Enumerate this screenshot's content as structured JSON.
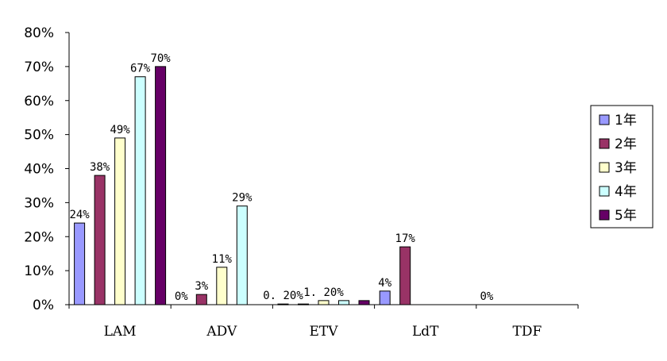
{
  "chart_data": {
    "type": "bar",
    "title": "",
    "xlabel": "",
    "ylabel": "",
    "ylim": [
      0,
      80
    ],
    "y_ticks": [
      "0%",
      "10%",
      "20%",
      "30%",
      "40%",
      "50%",
      "60%",
      "70%",
      "80%"
    ],
    "categories": [
      "LAM",
      "ADV",
      "ETV",
      "LdT",
      "TDF"
    ],
    "series": [
      {
        "name": "1年",
        "color": "#9999ff",
        "values": [
          24,
          0,
          0.2,
          4,
          0
        ]
      },
      {
        "name": "2年",
        "color": "#993366",
        "values": [
          38,
          3,
          0.2,
          17,
          0
        ]
      },
      {
        "name": "3年",
        "color": "#ffffcc",
        "values": [
          49,
          11,
          1.2,
          0,
          0
        ]
      },
      {
        "name": "4年",
        "color": "#ccffff",
        "values": [
          67,
          29,
          1.2,
          0,
          0
        ]
      },
      {
        "name": "5年",
        "color": "#660066",
        "values": [
          70,
          0,
          1.2,
          0,
          0
        ]
      }
    ],
    "data_labels": [
      {
        "category": 0,
        "series": 0,
        "text": "24%"
      },
      {
        "category": 0,
        "series": 1,
        "text": "38%"
      },
      {
        "category": 0,
        "series": 2,
        "text": "49%"
      },
      {
        "category": 0,
        "series": 3,
        "text": "67%"
      },
      {
        "category": 0,
        "series": 4,
        "text": "70%"
      },
      {
        "category": 1,
        "series": 0,
        "text": "0%"
      },
      {
        "category": 1,
        "series": 1,
        "text": "3%"
      },
      {
        "category": 1,
        "series": 2,
        "text": "11%"
      },
      {
        "category": 1,
        "series": 3,
        "text": "29%"
      },
      {
        "category": 2,
        "series": 0,
        "text": "0. 20%"
      },
      {
        "category": 2,
        "series": 2,
        "text": "1. 20%"
      },
      {
        "category": 3,
        "series": 0,
        "text": "4%"
      },
      {
        "category": 3,
        "series": 1,
        "text": "17%"
      },
      {
        "category": 4,
        "series": 0,
        "text": "0%"
      }
    ],
    "legend": {
      "position": "right"
    },
    "grid": false
  }
}
